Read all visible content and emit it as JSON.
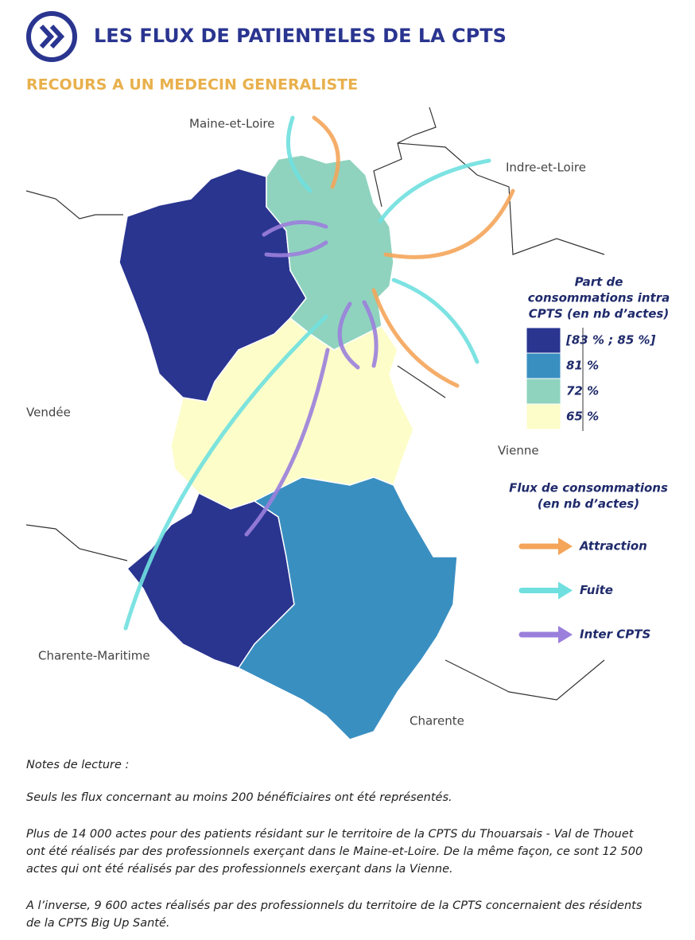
{
  "header": {
    "title": "LES FLUX DE PATIENTELES DE LA CPTS",
    "subtitle": "RECOURS A UN MEDECIN GENERALISTE"
  },
  "map": {
    "places": [
      "Maine-et-Loire",
      "Indre-et-Loire",
      "Vendée",
      "Vienne",
      "Charente-Maritime",
      "Charente"
    ]
  },
  "legend": {
    "share_title": [
      "Part de",
      "consommations intra",
      "CPTS (en nb d’actes)"
    ],
    "classes": [
      {
        "label": "[83 % ; 85 %]",
        "color": "#2a3590"
      },
      {
        "label": "81 %",
        "color": "#3a8fc1"
      },
      {
        "label": "72 %",
        "color": "#8fd3bf"
      },
      {
        "label": "65 %",
        "color": "#fdfdc9"
      }
    ],
    "flow_title": [
      "Flux de consommations",
      "(en nb d’actes)"
    ],
    "flows": [
      {
        "label": "Attraction",
        "color": "#f4a55a"
      },
      {
        "label": "Fuite",
        "color": "#6fe0df"
      },
      {
        "label": "Inter CPTS",
        "color": "#9b7fdc"
      }
    ]
  },
  "notes": {
    "heading": "Notes de lecture :",
    "paragraphs": [
      [
        "Seuls les flux concernant au moins 200 bénéficiaires ont été représentés."
      ],
      [
        "Plus de 14 000 actes pour des patients résidant sur le territoire de la CPTS du Thouarsais - Val de Thouet",
        "ont été réalisés par des professionnels exerçant dans le Maine-et-Loire. De la même façon, ce sont 12 500",
        "actes qui ont été réalisés par des professionnels exerçant dans la Vienne."
      ],
      [
        "A l’inverse, 9 600 actes réalisés par des professionnels du territoire de la CPTS concernaient des résidents",
        "de la CPTS Big Up Santé."
      ]
    ]
  }
}
